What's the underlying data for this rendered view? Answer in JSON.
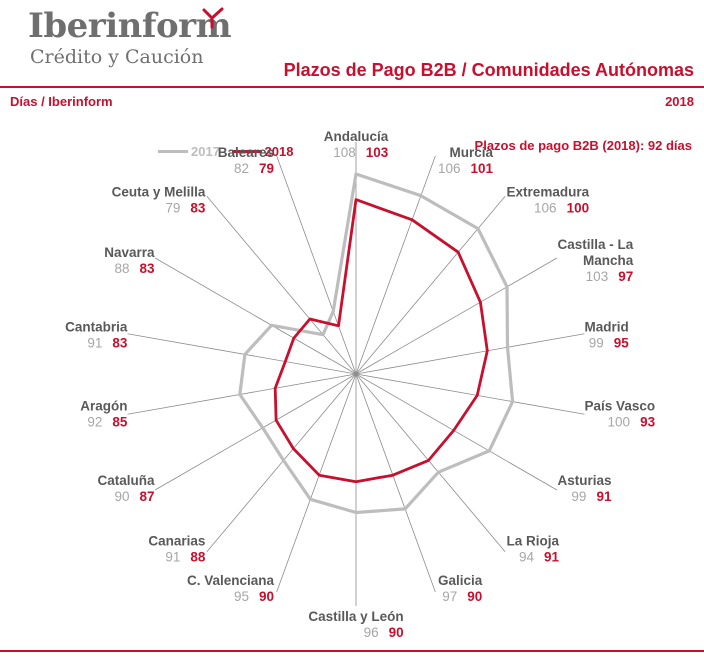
{
  "brand": {
    "name": "Iberinform",
    "tagline": "Crédito y Caución"
  },
  "header": {
    "title": "Plazos de Pago B2B / Comunidades Autónomas",
    "unit_label": "Días / Iberinform",
    "year_label": "2018"
  },
  "colors": {
    "brand_red": "#c8102e",
    "series_2017": "#bdbdbd",
    "series_2018": "#c8102e",
    "label_text": "#595959",
    "value_2017_text": "#a6a6a6"
  },
  "chart_data": {
    "type": "radar",
    "title": "Plazos de Pago B2B / Comunidades Autónomas",
    "annotation": "Plazos de pago B2B (2018): 92 días",
    "legend_position": "top-left",
    "categories": [
      "Andalucía",
      "Murcia",
      "Extremadura",
      "Castilla - La Mancha",
      "Madrid",
      "País Vasco",
      "Asturias",
      "La Rioja",
      "Galicia",
      "Castilla y León",
      "C. Valenciana",
      "Canarias",
      "Cataluña",
      "Aragón",
      "Cantabria",
      "Navarra",
      "Ceuta y Melilla",
      "Baleares"
    ],
    "series": [
      {
        "name": "2017",
        "values": [
          108,
          106,
          106,
          103,
          99,
          100,
          99,
          94,
          97,
          96,
          95,
          91,
          90,
          92,
          91,
          88,
          79,
          82
        ]
      },
      {
        "name": "2018",
        "values": [
          103,
          101,
          100,
          97,
          95,
          93,
          91,
          91,
          90,
          90,
          90,
          88,
          87,
          85,
          83,
          83,
          83,
          79
        ]
      }
    ],
    "radial_range": [
      69,
      108
    ]
  }
}
